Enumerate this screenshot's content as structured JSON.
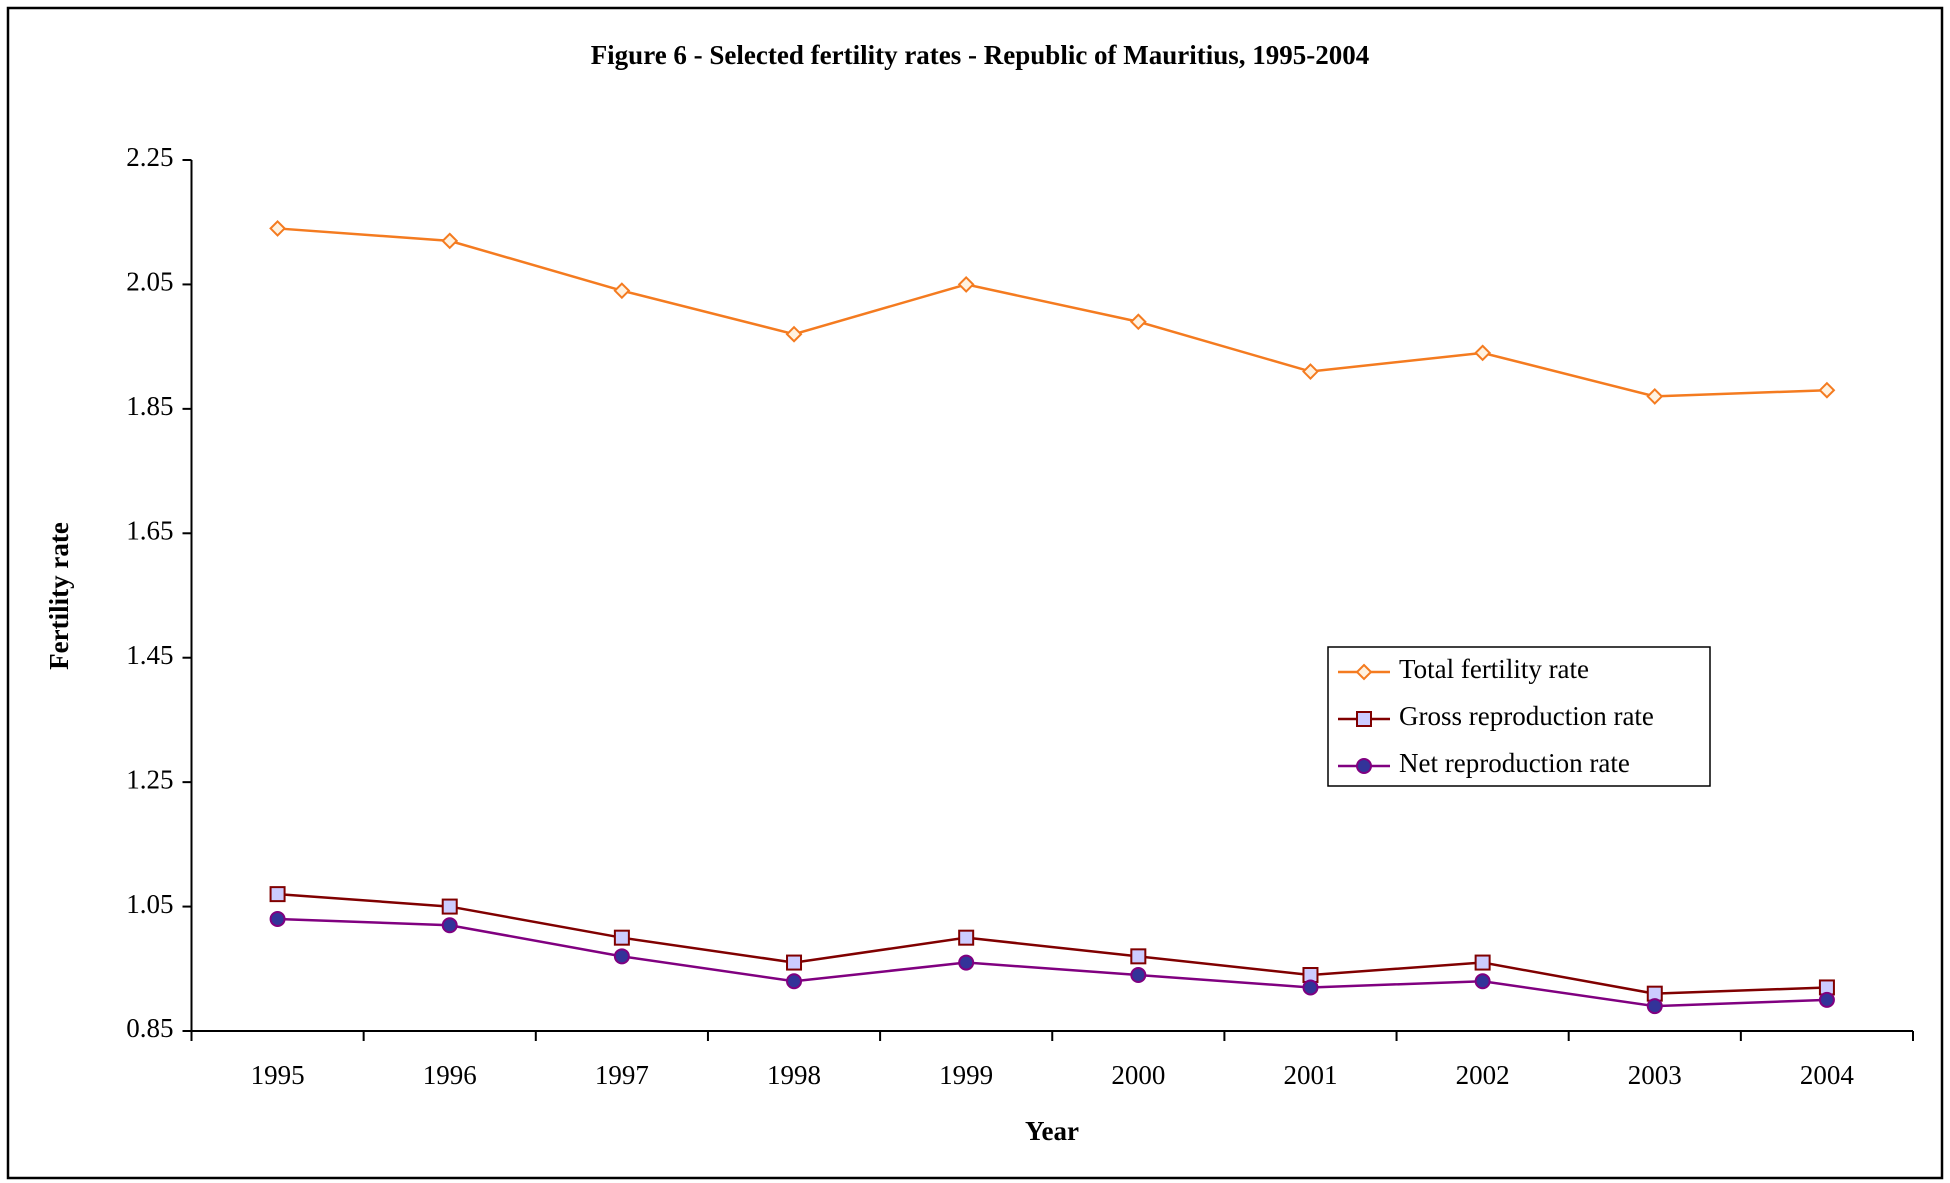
{
  "chart_data": {
    "type": "line",
    "title": "Figure 6 - Selected fertility rates - Republic of Mauritius, 1995-2004",
    "x_label": "Year",
    "y_label": "Fertility rate",
    "categories": [
      "1995",
      "1996",
      "1997",
      "1998",
      "1999",
      "2000",
      "2001",
      "2002",
      "2003",
      "2004"
    ],
    "series": [
      {
        "name": "Total fertility rate",
        "color": "#f47b20",
        "marker": "diamond",
        "marker_fill": "#fff2e0",
        "values": [
          2.14,
          2.12,
          2.04,
          1.97,
          2.05,
          1.99,
          1.91,
          1.94,
          1.87,
          1.88
        ]
      },
      {
        "name": "Gross reproduction rate",
        "color": "#800000",
        "marker": "square",
        "marker_fill": "#ccccff",
        "values": [
          1.07,
          1.05,
          1.0,
          0.96,
          1.0,
          0.97,
          0.94,
          0.96,
          0.91,
          0.92
        ]
      },
      {
        "name": "Net reproduction rate",
        "color": "#800080",
        "marker": "circle",
        "marker_fill": "#333399",
        "values": [
          1.03,
          1.02,
          0.97,
          0.93,
          0.96,
          0.94,
          0.92,
          0.93,
          0.89,
          0.9
        ]
      }
    ],
    "ylim": [
      0.85,
      2.25
    ],
    "yticks": [
      0.85,
      1.05,
      1.25,
      1.45,
      1.65,
      1.85,
      2.05,
      2.25
    ],
    "grid": false,
    "legend": "right"
  }
}
